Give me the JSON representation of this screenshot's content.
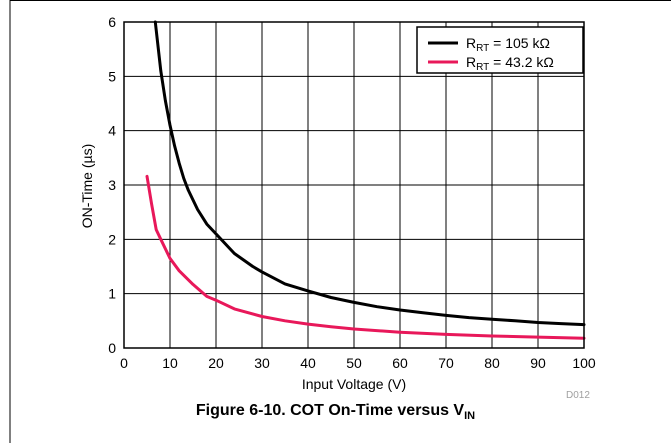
{
  "chart_data": {
    "type": "line",
    "xlabel": "Input Voltage (V)",
    "ylabel": "ON-Time (µs)",
    "xlim": [
      0,
      100
    ],
    "ylim": [
      0,
      6
    ],
    "x_ticks": [
      "0",
      "10",
      "20",
      "30",
      "40",
      "50",
      "60",
      "70",
      "80",
      "90",
      "100"
    ],
    "y_ticks": [
      "0",
      "1",
      "2",
      "3",
      "4",
      "5",
      "6"
    ],
    "grid": true,
    "legend_position": "top-right",
    "series": [
      {
        "name_main": "R",
        "name_sub": "RT",
        "name_value": " = 105 kΩ",
        "color": "#000000",
        "x": [
          6.8,
          8,
          9,
          10,
          11,
          12,
          13,
          14,
          16,
          18,
          20,
          24,
          28,
          30,
          35,
          40,
          45,
          50,
          55,
          60,
          65,
          70,
          75,
          80,
          85,
          90,
          95,
          100
        ],
        "y": [
          6.0,
          5.1,
          4.55,
          4.1,
          3.72,
          3.4,
          3.12,
          2.9,
          2.55,
          2.28,
          2.1,
          1.74,
          1.5,
          1.4,
          1.18,
          1.05,
          0.93,
          0.84,
          0.76,
          0.7,
          0.65,
          0.6,
          0.56,
          0.53,
          0.5,
          0.47,
          0.45,
          0.43
        ]
      },
      {
        "name_main": "R",
        "name_sub": "RT",
        "name_value": " = 43.2 kΩ",
        "color": "#e8185a",
        "x": [
          5,
          6,
          7,
          8,
          10,
          12,
          15,
          18,
          20,
          24,
          30,
          35,
          40,
          45,
          50,
          60,
          70,
          80,
          90,
          100
        ],
        "y": [
          3.16,
          2.65,
          2.18,
          2.0,
          1.65,
          1.42,
          1.17,
          0.95,
          0.88,
          0.72,
          0.58,
          0.5,
          0.44,
          0.39,
          0.35,
          0.29,
          0.25,
          0.22,
          0.2,
          0.18
        ]
      }
    ]
  },
  "figure": {
    "code": "D012",
    "caption_main": "Figure 6-10. COT On-Time versus V",
    "caption_sub": "IN"
  }
}
